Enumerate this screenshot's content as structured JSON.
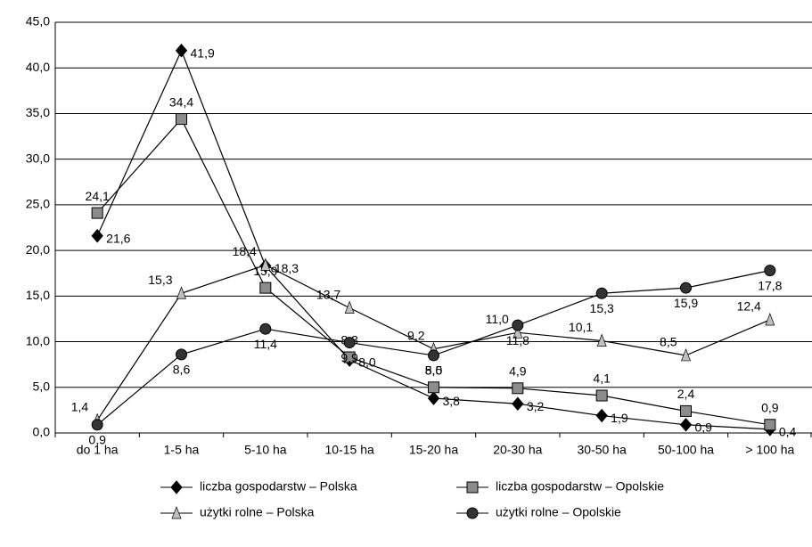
{
  "chart_data": {
    "type": "line",
    "categories": [
      "do 1 ha",
      "1-5 ha",
      "5-10 ha",
      "10-15 ha",
      "15-20 ha",
      "20-30 ha",
      "30-50 ha",
      "50-100 ha",
      "> 100 ha"
    ],
    "ylim": [
      0,
      45
    ],
    "yticks": [
      {
        "value": 0,
        "label": "0,0"
      },
      {
        "value": 5,
        "label": "5,0"
      },
      {
        "value": 10,
        "label": "10,0"
      },
      {
        "value": 15,
        "label": "15,0"
      },
      {
        "value": 20,
        "label": "20,0"
      },
      {
        "value": 25,
        "label": "25,0"
      },
      {
        "value": 30,
        "label": "30,0"
      },
      {
        "value": 35,
        "label": "35,0"
      },
      {
        "value": 40,
        "label": "40,0"
      },
      {
        "value": 45,
        "label": "45,0"
      }
    ],
    "grid": true,
    "series": [
      {
        "name": "liczba gospodarstw – Polska",
        "color": "#000000",
        "marker": "diamond",
        "values": [
          21.6,
          41.9,
          18.3,
          8.0,
          3.8,
          3.2,
          1.9,
          0.9,
          0.4
        ],
        "value_labels": [
          "21,6",
          "41,9",
          "18,3",
          "8,0",
          "3,8",
          "3,2",
          "1,9",
          "0,9",
          "0,4"
        ]
      },
      {
        "name": "liczba gospodarstw – Opolskie",
        "color": "#8c8c8c",
        "marker": "square",
        "values": [
          24.1,
          34.4,
          15.9,
          8.3,
          5.0,
          4.9,
          4.1,
          2.4,
          0.9
        ],
        "value_labels": [
          "24,1",
          "34,4",
          "15,9",
          "8,3",
          "5,0",
          "4,9",
          "4,1",
          "2,4",
          "0,9"
        ]
      },
      {
        "name": "użytki rolne – Polska",
        "color": "#c0c0c0",
        "marker": "triangle",
        "values": [
          1.4,
          15.3,
          18.4,
          13.7,
          9.2,
          11.0,
          10.1,
          8.5,
          12.4
        ],
        "value_labels": [
          "1,4",
          "15,3",
          "18,4",
          "13,7",
          "9,2",
          "11,0",
          "10,1",
          "8,5",
          "12,4"
        ]
      },
      {
        "name": "użytki rolne – Opolskie",
        "color": "#333333",
        "marker": "circle",
        "values": [
          0.9,
          8.6,
          11.4,
          9.9,
          8.5,
          11.8,
          15.3,
          15.9,
          17.8
        ],
        "value_labels": [
          "0,9",
          "8,6",
          "11,4",
          "9,9",
          "8,5",
          "11,8",
          "15,3",
          "15,9",
          "17,8"
        ]
      }
    ]
  }
}
